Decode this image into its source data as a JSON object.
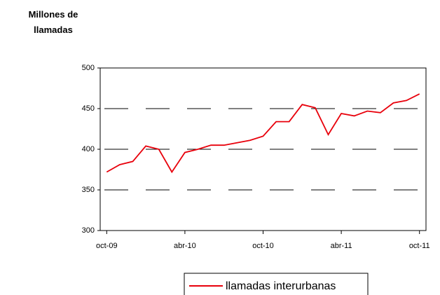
{
  "chart_data": {
    "type": "line",
    "y_label": "Millones de llamadas",
    "categories": [
      "oct-09",
      null,
      null,
      null,
      null,
      null,
      "abr-10",
      null,
      null,
      null,
      null,
      null,
      "oct-10",
      null,
      null,
      null,
      null,
      null,
      "abr-11",
      null,
      null,
      null,
      null,
      null,
      "oct-11"
    ],
    "series": [
      {
        "name": "llamadas interurbanas",
        "color": "#e8000b",
        "values": [
          372,
          381,
          385,
          404,
          400,
          372,
          396,
          400,
          405,
          405,
          408,
          411,
          416,
          434,
          434,
          455,
          451,
          418,
          444,
          441,
          447,
          445,
          457,
          460,
          468
        ]
      }
    ],
    "ylim": [
      300,
      500
    ],
    "yticks": [
      300,
      350,
      400,
      450,
      500
    ],
    "grid": true,
    "legend": "bottom"
  }
}
